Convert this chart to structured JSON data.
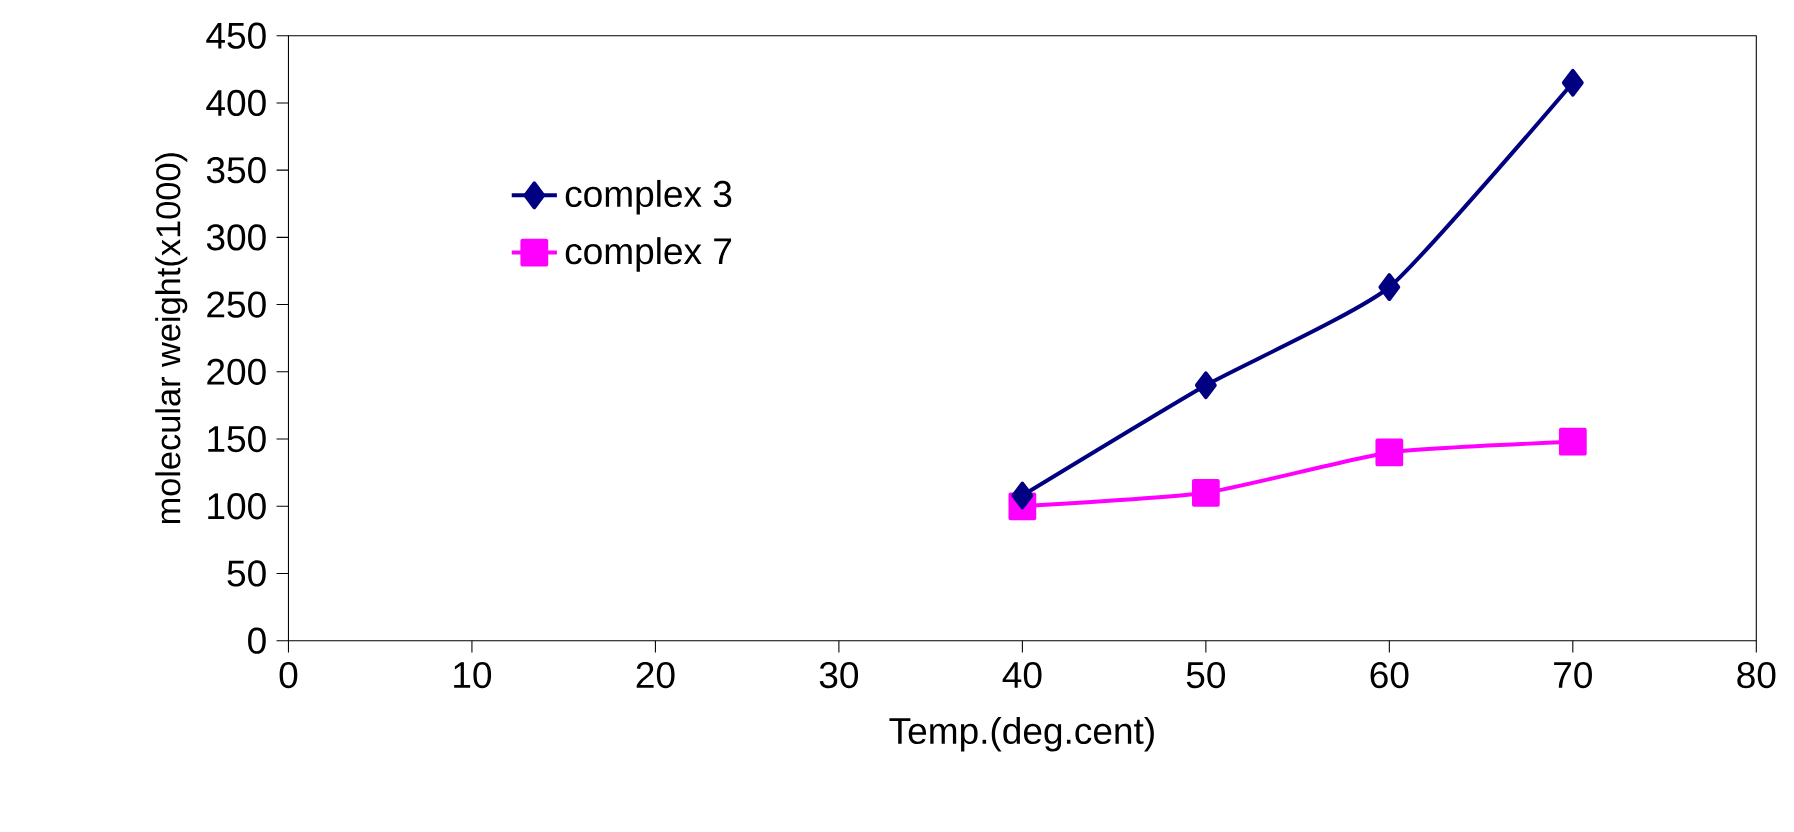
{
  "chart_data": {
    "type": "line",
    "xlabel": "Temp.(deg.cent)",
    "ylabel": "molecular weight(x1000)",
    "x": [
      40,
      50,
      60,
      70
    ],
    "series": [
      {
        "name": "complex 3",
        "color": "#000080",
        "marker": "diamond",
        "values": [
          108,
          190,
          263,
          415
        ]
      },
      {
        "name": "complex 7",
        "color": "#ff00ff",
        "marker": "square",
        "values": [
          100,
          110,
          140,
          148
        ]
      }
    ],
    "xlim": [
      0,
      80
    ],
    "xticks": [
      0,
      10,
      20,
      30,
      40,
      50,
      60,
      70,
      80
    ],
    "ylim": [
      0,
      450
    ],
    "yticks": [
      0,
      50,
      100,
      150,
      200,
      250,
      300,
      350,
      400,
      450
    ],
    "grid": false,
    "legend": "top left"
  }
}
